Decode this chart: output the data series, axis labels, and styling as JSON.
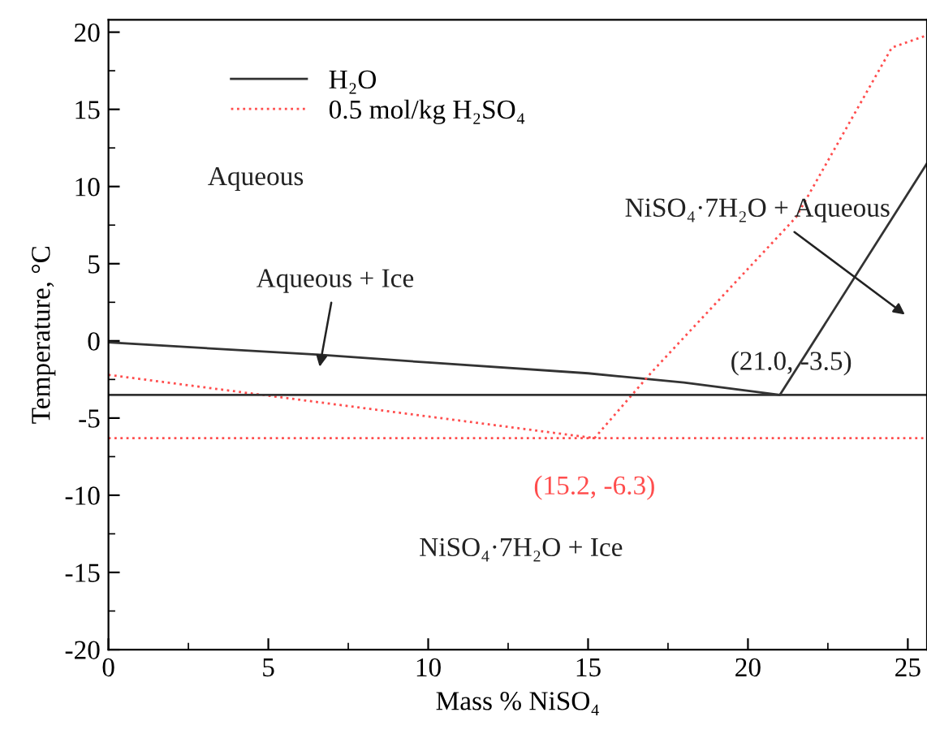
{
  "chart_data": {
    "type": "line",
    "xlabel": "Mass % NiSO₄",
    "ylabel": "Temperature, °C",
    "xlim": [
      0,
      25.6
    ],
    "ylim": [
      -20,
      20.8
    ],
    "xticks": [
      0,
      5,
      10,
      15,
      20,
      25
    ],
    "yticks": [
      -20,
      -15,
      -10,
      -5,
      0,
      5,
      10,
      15,
      20
    ],
    "series": [
      {
        "name": "H₂O",
        "color": "#333333",
        "line_style": "solid",
        "x": [
          0,
          6.6,
          10,
          15,
          18,
          21.0,
          25.6
        ],
        "values": [
          -0.1,
          -0.9,
          -1.4,
          -2.1,
          -2.7,
          -3.5,
          11.5
        ]
      },
      {
        "name": "0.5 mol/kg H₂SO₄",
        "color": "#ff4d4d",
        "line_style": "dotted",
        "x": [
          0,
          15.2,
          17,
          21.5,
          24.5,
          25.6
        ],
        "values": [
          -2.2,
          -6.3,
          -2.0,
          8.0,
          19.0,
          19.8
        ]
      }
    ],
    "ref_lines": [
      {
        "axis": "y",
        "value": -3.5,
        "color": "#333333",
        "line_style": "solid"
      },
      {
        "axis": "y",
        "value": -6.3,
        "color": "#ff4d4d",
        "line_style": "dotted"
      }
    ],
    "annotations": [
      "Aqueous",
      "Aqueous + Ice",
      "NiSO₄·7H₂O + Aqueous",
      {
        "text": "(21.0, -3.5)",
        "x": 21.0,
        "y": -3.5
      },
      {
        "text": "(15.2, -6.3)",
        "x": 15.2,
        "y": -6.3
      },
      "NiSO₄·7H₂O + Ice"
    ],
    "legend": "top left",
    "grid": false,
    "marker": "none"
  }
}
